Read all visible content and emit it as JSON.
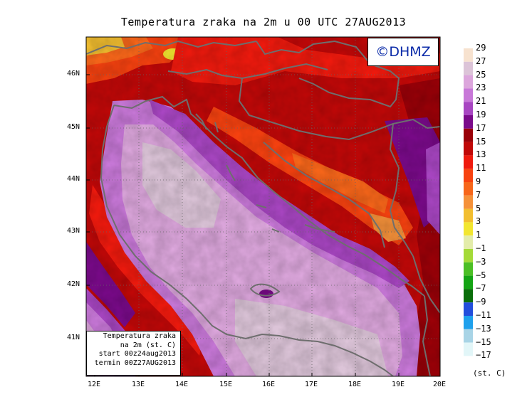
{
  "title": "Temperatura zraka na 2m u 00 UTC 27AUG2013",
  "copyright": "©DHMZ",
  "info_box": {
    "line1": "Temperatura zraka",
    "line2": "na 2m (st. C)",
    "line3": "start 00z24aug2013",
    "line4": "termin 00Z27AUG2013"
  },
  "axes": {
    "lon_labels": [
      "12E",
      "13E",
      "14E",
      "15E",
      "16E",
      "17E",
      "18E",
      "19E",
      "20E"
    ],
    "lat_labels": [
      "46N",
      "45N",
      "44N",
      "43N",
      "42N",
      "41N"
    ]
  },
  "legend": {
    "values": [
      "29",
      "27",
      "25",
      "23",
      "21",
      "19",
      "17",
      "15",
      "13",
      "11",
      "9",
      "7",
      "5",
      "3",
      "1",
      "−1",
      "−3",
      "−5",
      "−7",
      "−9",
      "−11",
      "−13",
      "−15",
      "−17"
    ],
    "colors": [
      "#f7e2cf",
      "#dcc4d8",
      "#dca6dc",
      "#c878d8",
      "#a846c2",
      "#7a0a8a",
      "#9a0008",
      "#c00808",
      "#ef1a0e",
      "#f74210",
      "#f7661a",
      "#f5913a",
      "#f2be30",
      "#f2e630",
      "#e3ecaa",
      "#a4da38",
      "#4bbf25",
      "#14a414",
      "#0a6e0a",
      "#234edc",
      "#1ea0ec",
      "#a8d4e6",
      "#e2f6f8"
    ],
    "unit": "(st. C)"
  }
}
